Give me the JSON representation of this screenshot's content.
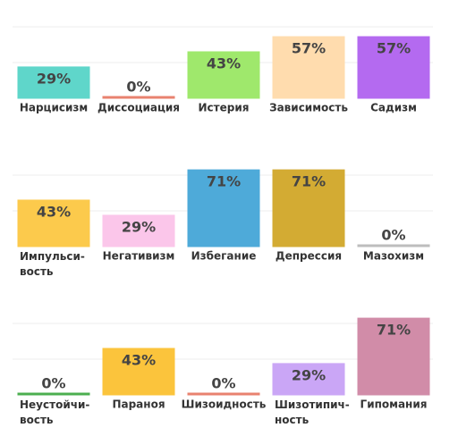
{
  "chart_data": [
    {
      "type": "bar",
      "ylim": [
        0,
        100
      ],
      "categories": [
        "Нарцисизм",
        "Диссоциация",
        "Истерия",
        "Зависимость",
        "Садизм"
      ],
      "values": [
        29,
        0,
        43,
        57,
        57
      ],
      "value_labels": [
        "29%",
        "0%",
        "43%",
        "57%",
        "57%"
      ],
      "colors": [
        "#5fd6ca",
        "#e8826f",
        "#9fe86c",
        "#ffdcae",
        "#b46af0"
      ]
    },
    {
      "type": "bar",
      "ylim": [
        0,
        100
      ],
      "categories": [
        "Импульси-\nвость",
        "Негативизм",
        "Избегание",
        "Депрессия",
        "Мазохизм"
      ],
      "values": [
        43,
        29,
        71,
        71,
        0
      ],
      "value_labels": [
        "43%",
        "29%",
        "71%",
        "71%",
        "0%"
      ],
      "colors": [
        "#fcca4c",
        "#fbc6ea",
        "#4eaad9",
        "#d3ab33",
        "#bdbdbd"
      ]
    },
    {
      "type": "bar",
      "ylim": [
        0,
        100
      ],
      "categories": [
        "Неустойчи-\nвость",
        "Параноя",
        "Шизоидность",
        "Шизотипич-\nность",
        "Гипомания"
      ],
      "values": [
        0,
        43,
        0,
        29,
        71
      ],
      "value_labels": [
        "0%",
        "43%",
        "0%",
        "29%",
        "71%"
      ],
      "colors": [
        "#4caf50",
        "#fbc43c",
        "#e8826f",
        "#caa6f6",
        "#d18ca8"
      ]
    }
  ]
}
